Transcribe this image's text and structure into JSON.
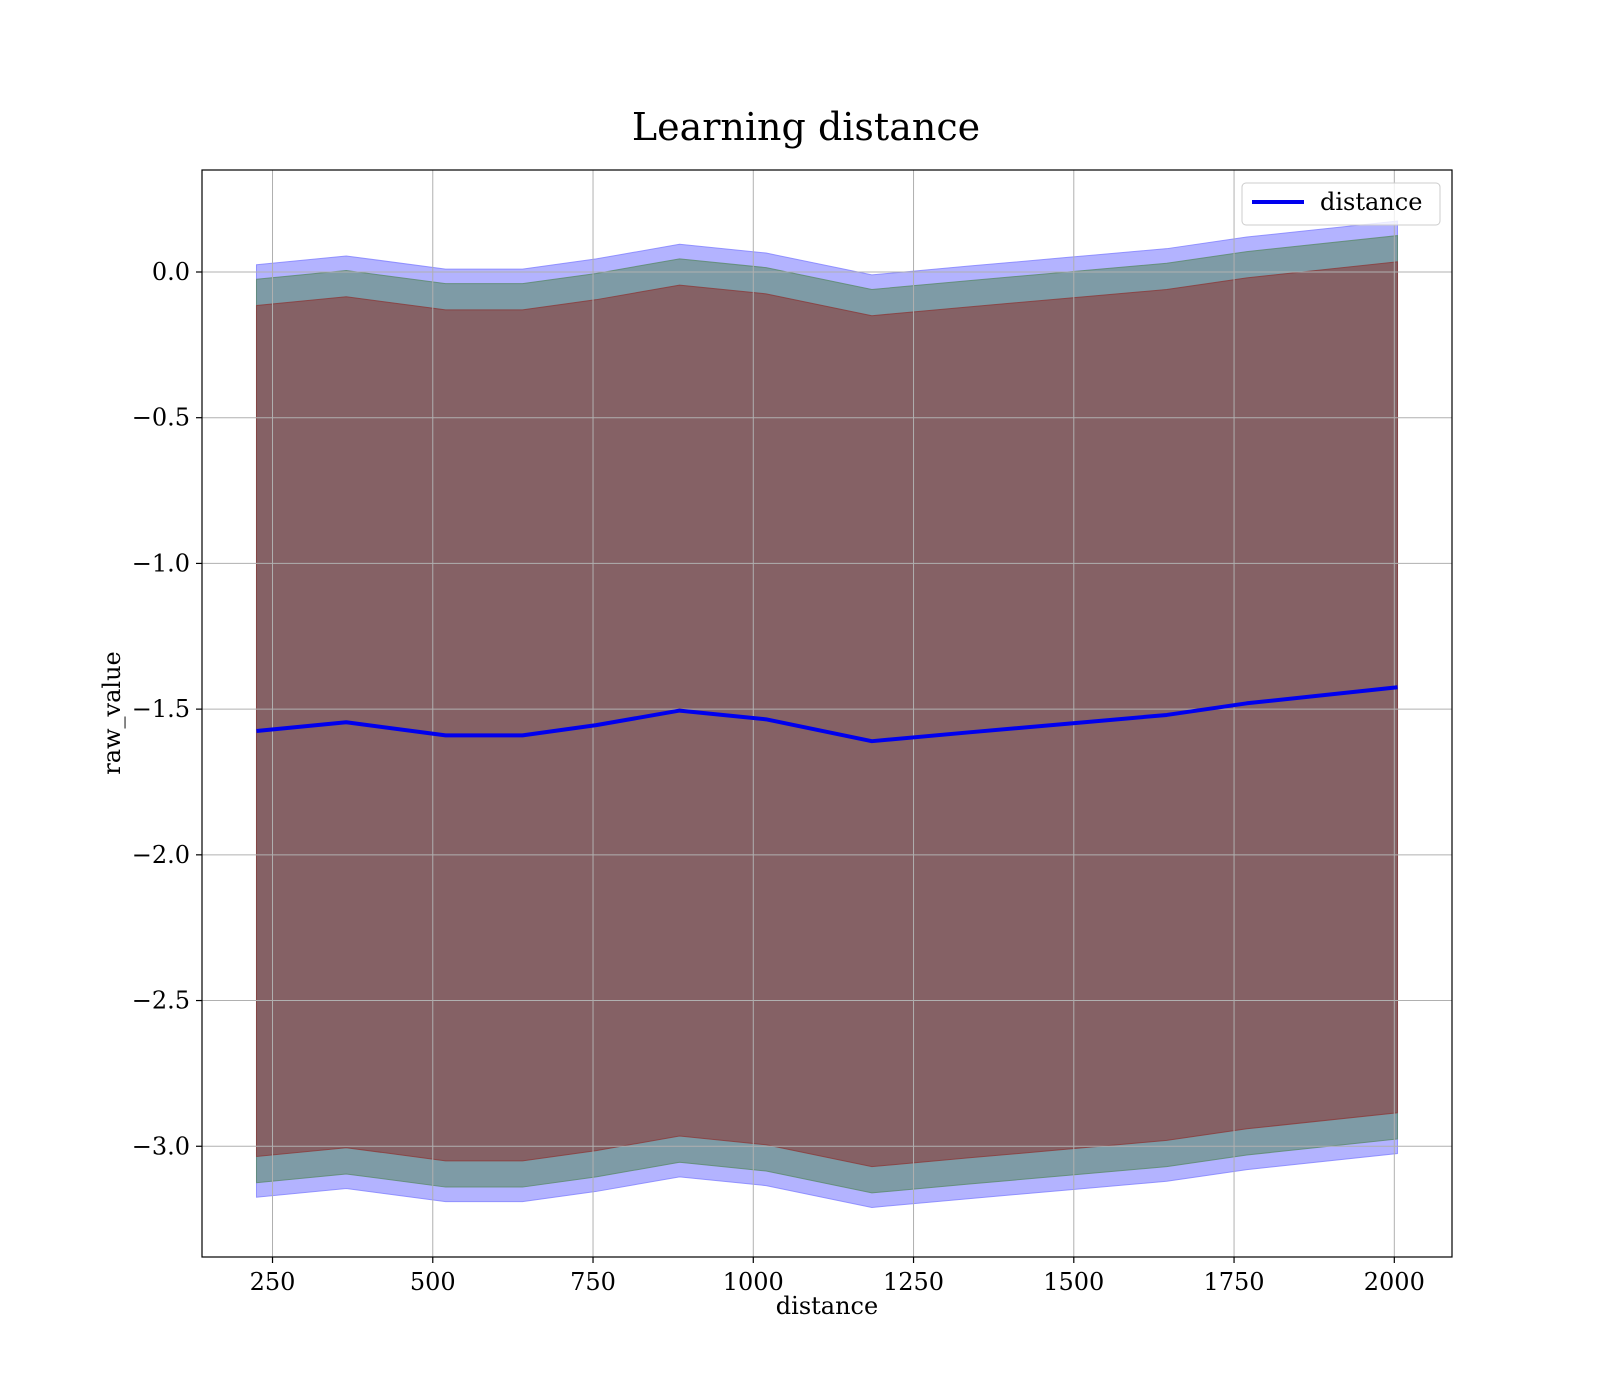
{
  "chart_data": {
    "type": "line",
    "title": "Learning distance",
    "xlabel": "distance",
    "ylabel": "raw_value",
    "xlim": [
      140,
      2090
    ],
    "ylim": [
      -3.38,
      0.35
    ],
    "xticks": [
      250,
      500,
      750,
      1000,
      1250,
      1500,
      1750,
      2000
    ],
    "xtick_labels": [
      "250",
      "500",
      "750",
      "1000",
      "1250",
      "1500",
      "1750",
      "2000"
    ],
    "yticks": [
      0.0,
      -0.5,
      -1.0,
      -1.5,
      -2.0,
      -2.5,
      -3.0
    ],
    "ytick_labels": [
      "0.0",
      "−0.5",
      "−1.0",
      "−1.5",
      "−2.0",
      "−2.5",
      "−3.0"
    ],
    "grid": true,
    "legend": {
      "position": "top-right",
      "entries": [
        "distance"
      ]
    },
    "x": [
      225,
      365,
      520,
      640,
      755,
      885,
      1020,
      1185,
      1335,
      1490,
      1645,
      1770,
      2005
    ],
    "series": [
      {
        "name": "distance",
        "color": "#0000ee",
        "values": [
          -1.575,
          -1.545,
          -1.59,
          -1.59,
          -1.555,
          -1.505,
          -1.535,
          -1.61,
          -1.58,
          -1.55,
          -1.52,
          -1.48,
          -1.425
        ]
      }
    ],
    "bands": [
      {
        "color": "#8080ff",
        "lower": [
          -3.175,
          -3.145,
          -3.19,
          -3.19,
          -3.155,
          -3.105,
          -3.135,
          -3.21,
          -3.18,
          -3.15,
          -3.12,
          -3.08,
          -3.025
        ],
        "upper": [
          0.025,
          0.055,
          0.01,
          0.01,
          0.045,
          0.095,
          0.065,
          -0.01,
          0.02,
          0.05,
          0.08,
          0.12,
          0.175
        ]
      },
      {
        "color": "#5a8a6a",
        "lower": [
          -3.125,
          -3.095,
          -3.14,
          -3.14,
          -3.105,
          -3.055,
          -3.085,
          -3.16,
          -3.13,
          -3.1,
          -3.07,
          -3.03,
          -2.975
        ],
        "upper": [
          -0.025,
          0.005,
          -0.04,
          -0.04,
          -0.005,
          0.045,
          0.015,
          -0.06,
          -0.03,
          0.0,
          0.03,
          0.07,
          0.125
        ]
      },
      {
        "color": "#8b3a3a",
        "lower": [
          -3.035,
          -3.005,
          -3.05,
          -3.05,
          -3.015,
          -2.965,
          -2.995,
          -3.07,
          -3.04,
          -3.01,
          -2.98,
          -2.94,
          -2.885
        ],
        "upper": [
          -0.115,
          -0.085,
          -0.13,
          -0.13,
          -0.095,
          -0.045,
          -0.075,
          -0.15,
          -0.12,
          -0.09,
          -0.06,
          -0.02,
          0.035
        ]
      }
    ]
  }
}
